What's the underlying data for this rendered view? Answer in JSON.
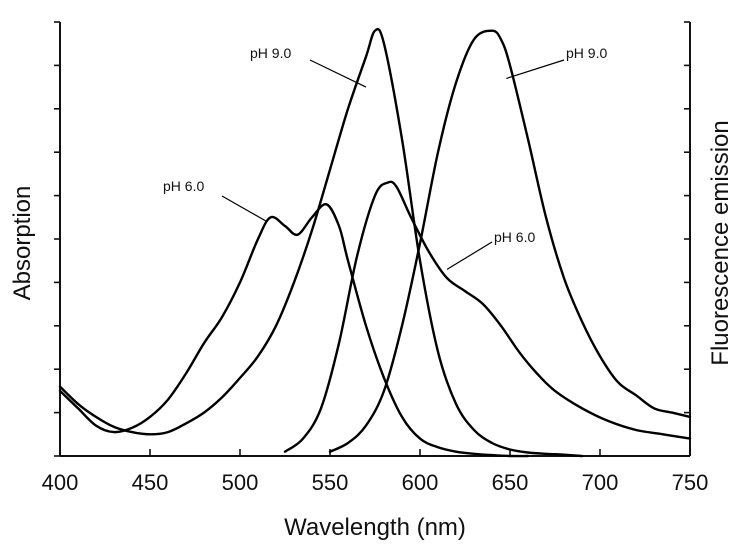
{
  "chart_data": {
    "type": "line",
    "title": "",
    "xlabel": "Wavelength (nm)",
    "ylabel_left": "Absorption",
    "ylabel_right": "Fluorescence emission",
    "xlim": [
      400,
      750
    ],
    "ylim": [
      0,
      1
    ],
    "xticks": [
      400,
      450,
      500,
      550,
      600,
      650,
      700,
      750
    ],
    "xtick_labels": [
      "400",
      "450",
      "500",
      "550",
      "600",
      "650",
      "700",
      "750"
    ],
    "y_minor_tick_count": 10,
    "grid": false,
    "series": [
      {
        "name": "Absorption pH 9.0",
        "kind": "absorption",
        "x": [
          400,
          410,
          420,
          430,
          440,
          450,
          460,
          470,
          480,
          490,
          500,
          510,
          520,
          530,
          540,
          550,
          560,
          570,
          575,
          580,
          590,
          600,
          610,
          620,
          630,
          640,
          650,
          660,
          670,
          680,
          690
        ],
        "y": [
          0.16,
          0.12,
          0.09,
          0.067,
          0.055,
          0.05,
          0.055,
          0.075,
          0.1,
          0.135,
          0.18,
          0.23,
          0.3,
          0.4,
          0.52,
          0.66,
          0.8,
          0.92,
          0.98,
          0.95,
          0.73,
          0.45,
          0.24,
          0.12,
          0.06,
          0.03,
          0.015,
          0.008,
          0.005,
          0.003,
          0.0
        ]
      },
      {
        "name": "Absorption pH 6.0",
        "kind": "absorption",
        "x": [
          400,
          410,
          420,
          430,
          440,
          450,
          460,
          470,
          480,
          490,
          500,
          510,
          517,
          525,
          532,
          540,
          548,
          555,
          560,
          570,
          580,
          590,
          600,
          610,
          620,
          630,
          640,
          650,
          660
        ],
        "y": [
          0.15,
          0.11,
          0.07,
          0.055,
          0.065,
          0.09,
          0.13,
          0.19,
          0.26,
          0.32,
          0.4,
          0.5,
          0.55,
          0.53,
          0.51,
          0.55,
          0.58,
          0.53,
          0.45,
          0.3,
          0.18,
          0.09,
          0.04,
          0.02,
          0.01,
          0.005,
          0.002,
          0.0,
          0.0
        ]
      },
      {
        "name": "Emission pH 9.0",
        "kind": "emission",
        "x": [
          550,
          560,
          570,
          580,
          590,
          600,
          610,
          620,
          630,
          640,
          645,
          650,
          660,
          670,
          680,
          690,
          700,
          710,
          720,
          730,
          740,
          750
        ],
        "y": [
          0.01,
          0.03,
          0.07,
          0.15,
          0.3,
          0.49,
          0.7,
          0.86,
          0.96,
          0.98,
          0.96,
          0.9,
          0.73,
          0.55,
          0.41,
          0.31,
          0.23,
          0.17,
          0.14,
          0.11,
          0.1,
          0.09
        ]
      },
      {
        "name": "Emission pH 6.0",
        "kind": "emission",
        "x": [
          525,
          535,
          545,
          555,
          565,
          575,
          582,
          587,
          595,
          605,
          615,
          625,
          635,
          645,
          655,
          665,
          675,
          690,
          705,
          720,
          735,
          750
        ],
        "y": [
          0.01,
          0.04,
          0.11,
          0.26,
          0.46,
          0.6,
          0.63,
          0.62,
          0.55,
          0.47,
          0.41,
          0.38,
          0.35,
          0.3,
          0.24,
          0.19,
          0.15,
          0.11,
          0.08,
          0.06,
          0.05,
          0.04
        ]
      }
    ],
    "annotations": [
      {
        "text": "pH 9.0",
        "target": "Absorption pH 9.0",
        "side": "left"
      },
      {
        "text": "pH 9.0",
        "target": "Emission pH 9.0",
        "side": "right"
      },
      {
        "text": "pH 6.0",
        "target": "Absorption pH 6.0",
        "side": "left"
      },
      {
        "text": "pH 6.0",
        "target": "Emission pH 6.0",
        "side": "right"
      }
    ]
  }
}
